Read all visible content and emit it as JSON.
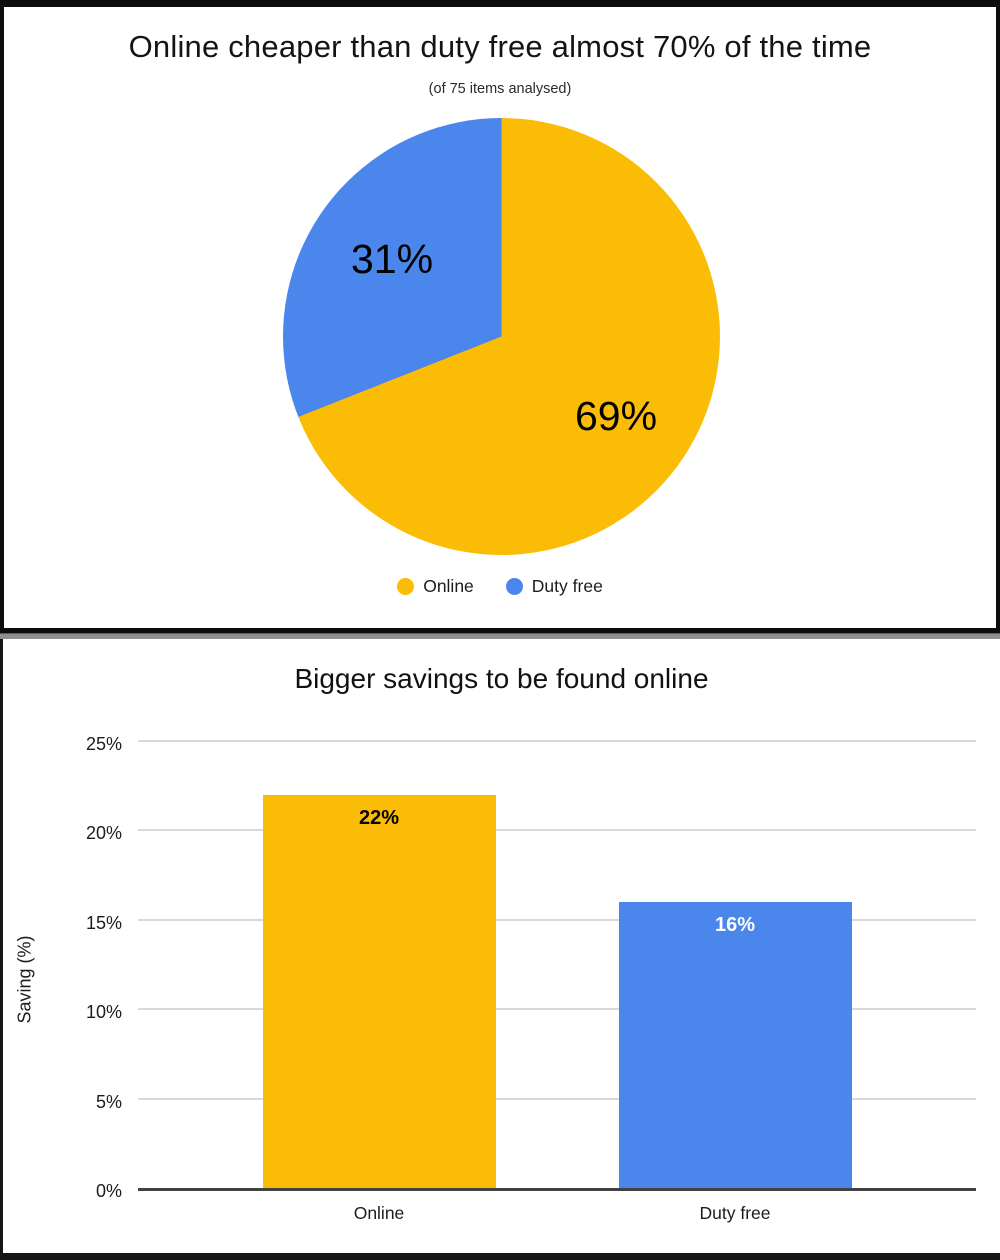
{
  "chart_data": [
    {
      "type": "pie",
      "title": "Online cheaper than duty free almost 70% of the time",
      "subtitle": "(of 75 items analysed)",
      "labels": [
        "Online",
        "Duty free"
      ],
      "values": [
        69,
        31
      ],
      "value_labels": [
        "69%",
        "31%"
      ],
      "colors": [
        "#FBBC05",
        "#4A86EC"
      ],
      "slice_label_color": "#000000",
      "start_angle_deg": 0,
      "direction": "clockwise",
      "legend_position": "bottom"
    },
    {
      "type": "bar",
      "title": "Bigger savings to be found online",
      "categories": [
        "Online",
        "Duty free"
      ],
      "values": [
        22,
        16
      ],
      "value_labels": [
        "22%",
        "16%"
      ],
      "value_label_colors": [
        "#000000",
        "#ffffff"
      ],
      "colors": [
        "#FBBC05",
        "#4A86EC"
      ],
      "xlabel": "",
      "ylabel": "Saving (%)",
      "ylim": [
        0,
        25
      ],
      "ytick_step": 5,
      "ytick_labels": [
        "0%",
        "5%",
        "10%",
        "15%",
        "20%",
        "25%"
      ],
      "grid": true,
      "gridline_color": "#d9d9d9",
      "axis_color": "#424242",
      "legend_position": "none"
    }
  ]
}
